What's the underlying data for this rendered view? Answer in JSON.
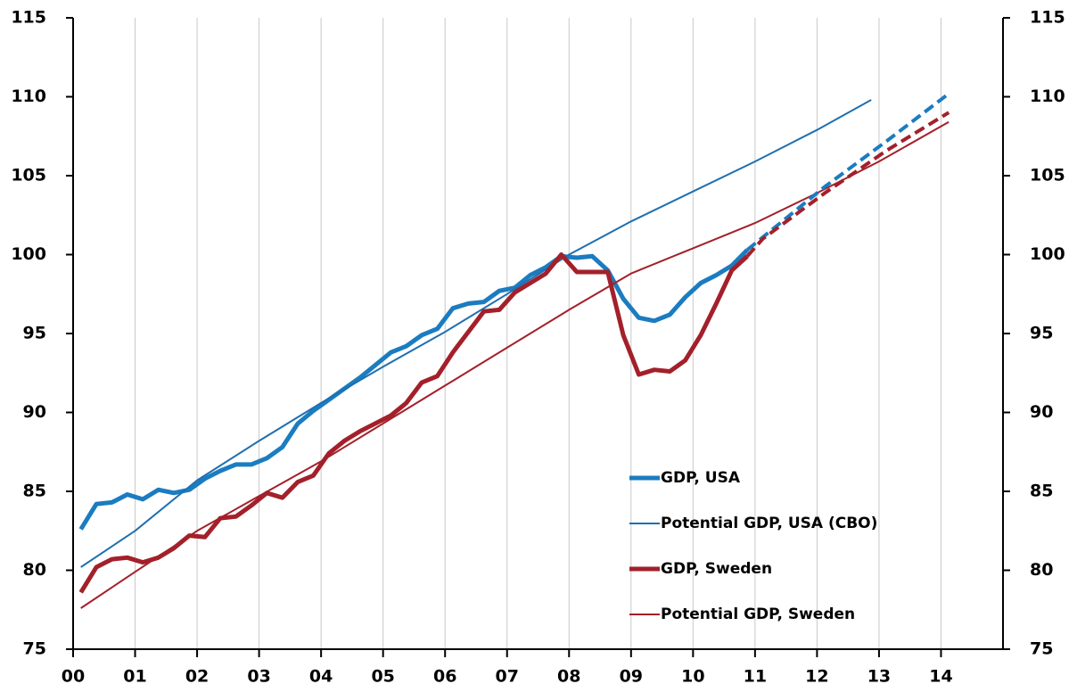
{
  "chart_data": {
    "type": "line",
    "xlim": [
      0,
      15
    ],
    "xticks": [
      {
        "value": 0,
        "label": "00"
      },
      {
        "value": 1,
        "label": "01"
      },
      {
        "value": 2,
        "label": "02"
      },
      {
        "value": 3,
        "label": "03"
      },
      {
        "value": 4,
        "label": "04"
      },
      {
        "value": 5,
        "label": "05"
      },
      {
        "value": 6,
        "label": "06"
      },
      {
        "value": 7,
        "label": "07"
      },
      {
        "value": 8,
        "label": "08"
      },
      {
        "value": 9,
        "label": "09"
      },
      {
        "value": 10,
        "label": "10"
      },
      {
        "value": 11,
        "label": "11"
      },
      {
        "value": 12,
        "label": "12"
      },
      {
        "value": 13,
        "label": "13"
      },
      {
        "value": 14,
        "label": "14"
      }
    ],
    "ylim": [
      75,
      115
    ],
    "yticks": [
      75,
      80,
      85,
      90,
      95,
      100,
      105,
      110,
      115
    ],
    "y2lim": [
      75,
      115
    ],
    "y2ticks": [
      75,
      80,
      85,
      90,
      95,
      100,
      105,
      110,
      115
    ],
    "grid": true,
    "series": [
      {
        "name": "GDP, USA",
        "color": "#1b7cc0",
        "width": 5,
        "x": [
          0.125,
          0.375,
          0.625,
          0.875,
          1.125,
          1.375,
          1.625,
          1.875,
          2.125,
          2.375,
          2.625,
          2.875,
          3.125,
          3.375,
          3.625,
          3.875,
          4.125,
          4.375,
          4.625,
          4.875,
          5.125,
          5.375,
          5.625,
          5.875,
          6.125,
          6.375,
          6.625,
          6.875,
          7.125,
          7.375,
          7.625,
          7.875,
          8.125,
          8.375,
          8.625,
          8.875,
          9.125,
          9.375,
          9.625,
          9.875,
          10.125,
          10.375,
          10.625,
          10.875
        ],
        "values": [
          82.6,
          84.2,
          84.3,
          84.8,
          84.5,
          85.1,
          84.9,
          85.1,
          85.8,
          86.3,
          86.7,
          86.7,
          87.1,
          87.8,
          89.3,
          90.1,
          90.8,
          91.5,
          92.2,
          93.0,
          93.8,
          94.2,
          94.9,
          95.3,
          96.6,
          96.9,
          97.0,
          97.7,
          97.9,
          98.7,
          99.2,
          99.9,
          99.8,
          99.9,
          99.0,
          97.2,
          96.0,
          95.8,
          96.2,
          97.3,
          98.2,
          98.7,
          99.3,
          100.3
        ]
      },
      {
        "name": "Potential GDP, USA (CBO)",
        "color": "#1f6fb0",
        "width": 2,
        "x": [
          0.125,
          1,
          2,
          3,
          4,
          5,
          6,
          7,
          8,
          9,
          10,
          11,
          12,
          12.875
        ],
        "values": [
          80.2,
          82.5,
          85.7,
          88.2,
          90.6,
          92.9,
          95.1,
          97.5,
          100.0,
          102.1,
          104.0,
          105.9,
          107.9,
          109.8
        ]
      },
      {
        "name": "GDP, Sweden",
        "color": "#a3202a",
        "width": 5,
        "x": [
          0.125,
          0.375,
          0.625,
          0.875,
          1.125,
          1.375,
          1.625,
          1.875,
          2.125,
          2.375,
          2.625,
          2.875,
          3.125,
          3.375,
          3.625,
          3.875,
          4.125,
          4.375,
          4.625,
          4.875,
          5.125,
          5.375,
          5.625,
          5.875,
          6.125,
          6.375,
          6.625,
          6.875,
          7.125,
          7.375,
          7.625,
          7.875,
          8.125,
          8.375,
          8.625,
          8.875,
          9.125,
          9.375,
          9.625,
          9.875,
          10.125,
          10.375,
          10.625,
          10.875
        ],
        "values": [
          78.6,
          80.2,
          80.7,
          80.8,
          80.5,
          80.8,
          81.4,
          82.2,
          82.1,
          83.3,
          83.4,
          84.1,
          84.9,
          84.6,
          85.6,
          86.0,
          87.4,
          88.2,
          88.8,
          89.3,
          89.8,
          90.6,
          91.9,
          92.3,
          93.8,
          95.1,
          96.4,
          96.5,
          97.6,
          98.2,
          98.8,
          100.0,
          98.9,
          98.9,
          98.9,
          94.9,
          92.4,
          92.7,
          92.6,
          93.3,
          94.9,
          96.9,
          99.0,
          99.9
        ]
      },
      {
        "name": "Potential GDP, Sweden",
        "color": "#a3202a",
        "width": 2,
        "x": [
          0.125,
          1,
          2,
          3,
          4,
          5,
          6,
          7,
          8,
          9,
          10,
          11,
          12,
          13,
          14.125
        ],
        "values": [
          77.6,
          79.9,
          82.5,
          84.7,
          86.9,
          89.3,
          91.7,
          94.1,
          96.5,
          98.8,
          100.4,
          102.0,
          103.9,
          105.9,
          108.4
        ]
      },
      {
        "color": "#1b7cc0",
        "width": 4,
        "dashed": true,
        "x": [
          10.875,
          11.125,
          12.125,
          13.125,
          14.125
        ],
        "values": [
          100.3,
          101.1,
          104.3,
          107.2,
          110.2
        ]
      },
      {
        "color": "#a3202a",
        "width": 4,
        "dashed": true,
        "x": [
          10.875,
          11.125,
          12.125,
          13.125,
          14.125
        ],
        "values": [
          99.9,
          101.0,
          103.9,
          106.6,
          109.0
        ]
      }
    ]
  }
}
